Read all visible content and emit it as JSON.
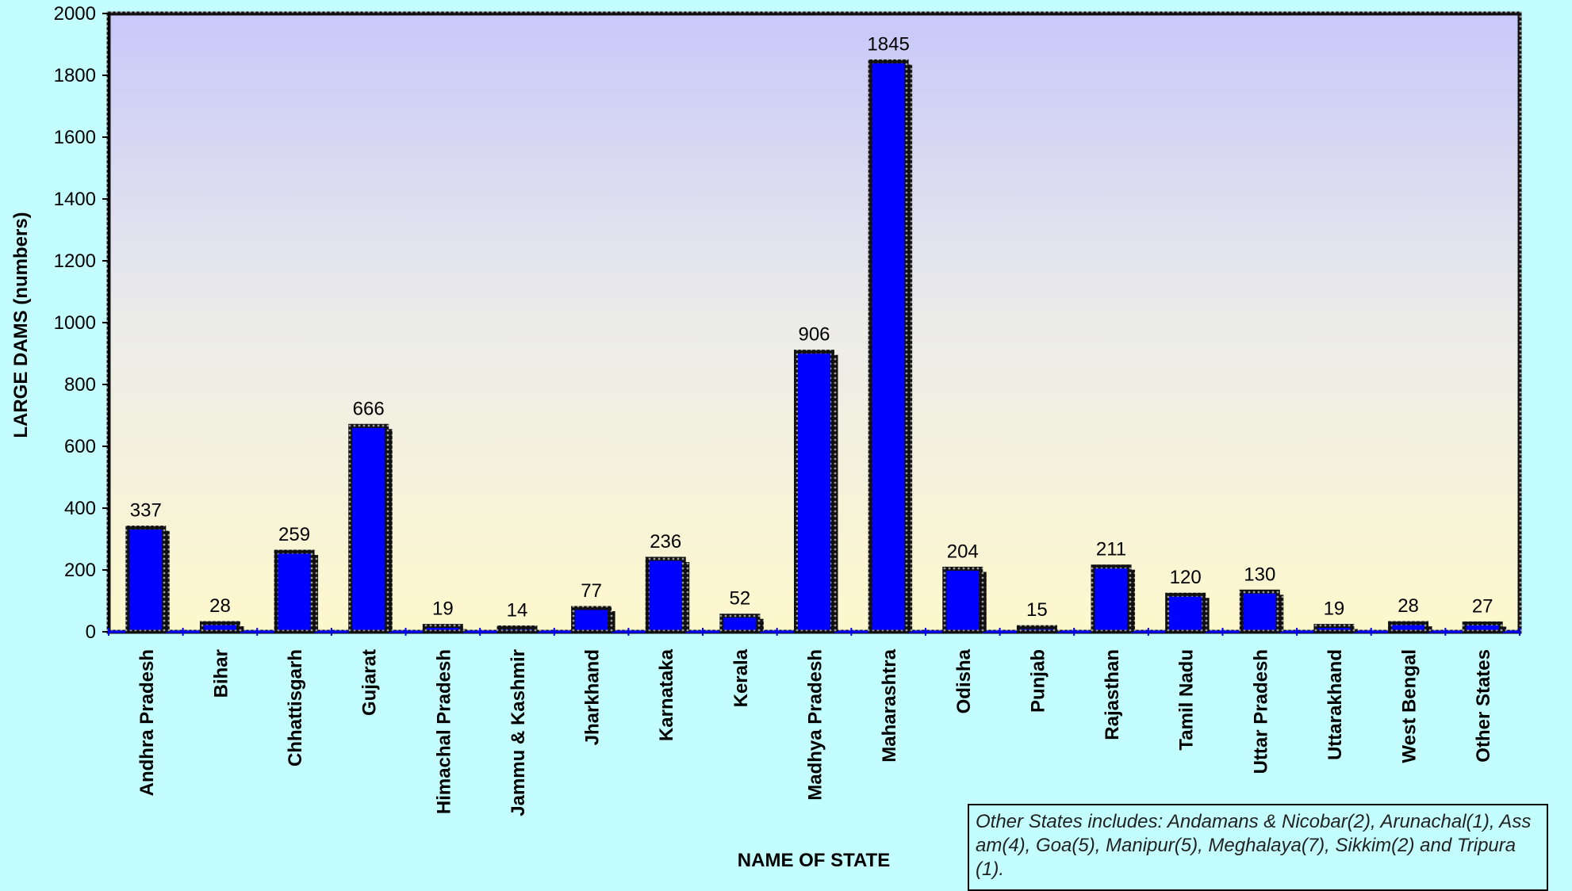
{
  "chart_data": {
    "type": "bar",
    "title": "",
    "xlabel": "NAME OF STATE",
    "ylabel": "LARGE DAMS (numbers)",
    "ylim": [
      0,
      2000
    ],
    "yticks": [
      0,
      200,
      400,
      600,
      800,
      1000,
      1200,
      1400,
      1600,
      1800,
      2000
    ],
    "grid": false,
    "bar_color": "#0000ff",
    "categories": [
      "Andhra Pradesh",
      "Bihar",
      "Chhattisgarh",
      "Gujarat",
      "Himachal Pradesh",
      "Jammu & Kashmir",
      "Jharkhand",
      "Karnataka",
      "Kerala",
      "Madhya Pradesh",
      "Maharashtra",
      "Odisha",
      "Punjab",
      "Rajasthan",
      "Tamil Nadu",
      "Uttar Pradesh",
      "Uttarakhand",
      "West Bengal",
      "Other States"
    ],
    "values": [
      337,
      28,
      259,
      666,
      19,
      14,
      77,
      236,
      52,
      906,
      1845,
      204,
      15,
      211,
      120,
      130,
      19,
      28,
      27
    ]
  },
  "note": "Other States includes: Andamans & Nicobar(2), Arunachal(1), Assam(4), Goa(5), Manipur(5), Meghalaya(7), Sikkim(2) and Tripura(1)."
}
